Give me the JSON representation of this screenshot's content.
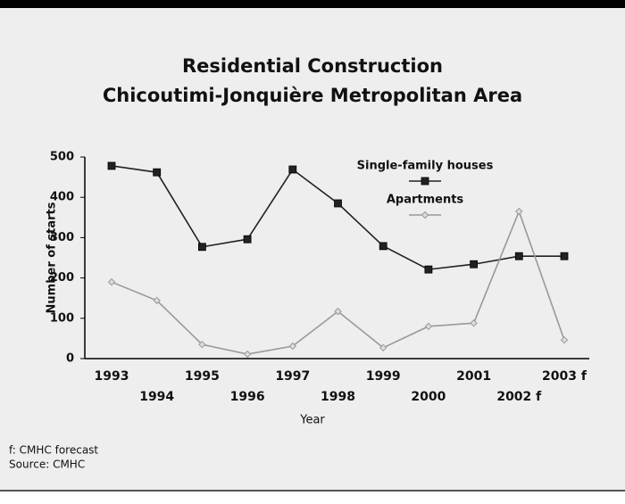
{
  "chart_data": {
    "type": "line",
    "title": [
      "Residential Construction",
      "Chicoutimi-Jonquière Metropolitan Area"
    ],
    "x_label": "Year",
    "y_label": "Number of starts",
    "categories": [
      "1993",
      "1994",
      "1995",
      "1996",
      "1997",
      "1998",
      "1999",
      "2000",
      "2001",
      "2002 f",
      "2003 f"
    ],
    "series": [
      {
        "name": "Single-family houses",
        "color": "#222222",
        "marker": "square",
        "values": [
          478,
          462,
          277,
          296,
          469,
          385,
          279,
          221,
          234,
          254,
          254
        ]
      },
      {
        "name": "Apartments",
        "color": "#999999",
        "marker": "diamond",
        "values": [
          190,
          144,
          35,
          11,
          31,
          117,
          27,
          80,
          88,
          365,
          46
        ]
      }
    ],
    "ylim": [
      0,
      500
    ],
    "yticks": [
      0,
      100,
      200,
      300,
      400,
      500
    ],
    "grid": false,
    "notes": [
      "f: CMHC forecast",
      "Source: CMHC"
    ]
  }
}
